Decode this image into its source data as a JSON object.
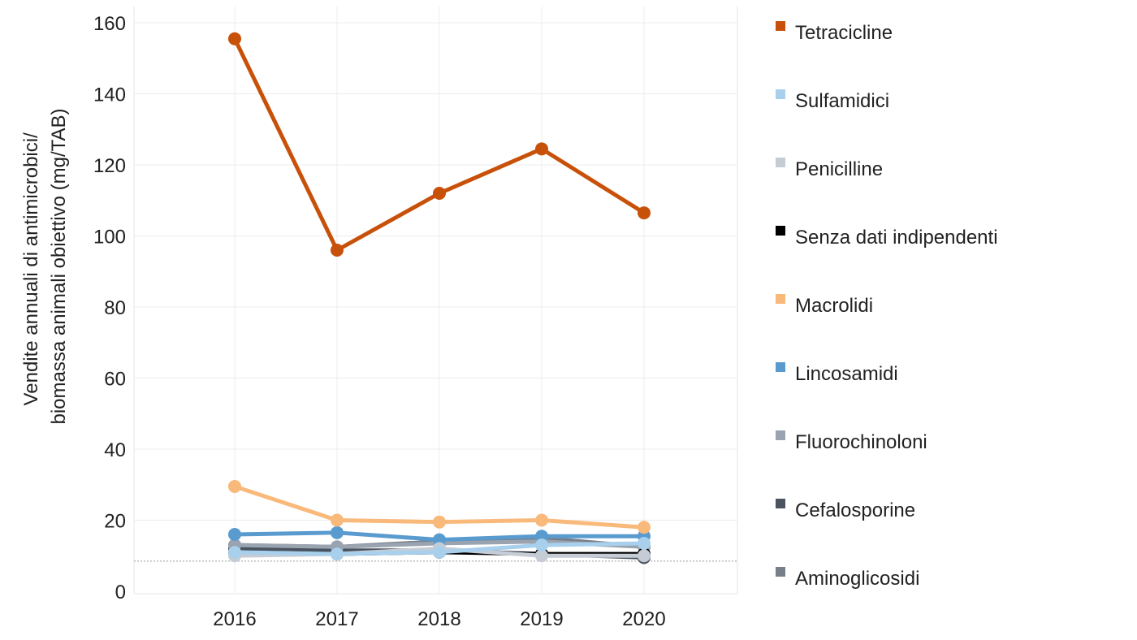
{
  "chart_data": {
    "type": "line",
    "ylabel_line1": "Vendite annuali di antimicrobici/",
    "ylabel_line2": "biomassa animali obiettivo (mg/TAB)",
    "xlabel": "",
    "x": [
      "2016",
      "2017",
      "2018",
      "2019",
      "2020"
    ],
    "ylim": [
      0,
      160
    ],
    "yticks": [
      0,
      20,
      40,
      60,
      80,
      100,
      120,
      140,
      160
    ],
    "grid": true,
    "reference_line": 8.5,
    "legend_position": "right",
    "series": [
      {
        "name": "Tetracicline",
        "color": "#c8510a",
        "values": [
          155.5,
          96,
          112,
          124.5,
          106.5
        ]
      },
      {
        "name": "Sulfamidici",
        "color": "#a8d0ec",
        "values": [
          11,
          10.5,
          11,
          13,
          13.5
        ]
      },
      {
        "name": "Penicilline",
        "color": "#c5ccd6",
        "values": [
          10,
          10.5,
          12,
          10,
          10
        ]
      },
      {
        "name": "Senza dati indipendenti",
        "color": "#000000",
        "values": [
          11,
          10.5,
          11,
          10.5,
          10.5
        ]
      },
      {
        "name": "Macrolidi",
        "color": "#f9b97a",
        "values": [
          29.5,
          20,
          19.5,
          20,
          18
        ]
      },
      {
        "name": "Lincosamidi",
        "color": "#5a9bcf",
        "values": [
          16,
          16.5,
          14.5,
          15.5,
          15.5
        ]
      },
      {
        "name": "Fluorochinoloni",
        "color": "#9aa3b0",
        "values": [
          13,
          12.5,
          13.5,
          14,
          12.5
        ]
      },
      {
        "name": "Cefalosporine",
        "color": "#4a5360",
        "values": [
          12,
          11.5,
          11.5,
          10.5,
          9.5
        ]
      },
      {
        "name": "Aminoglicosidi",
        "color": "#777f8a",
        "values": [
          13,
          12.5,
          14,
          15,
          12.5
        ]
      }
    ]
  }
}
